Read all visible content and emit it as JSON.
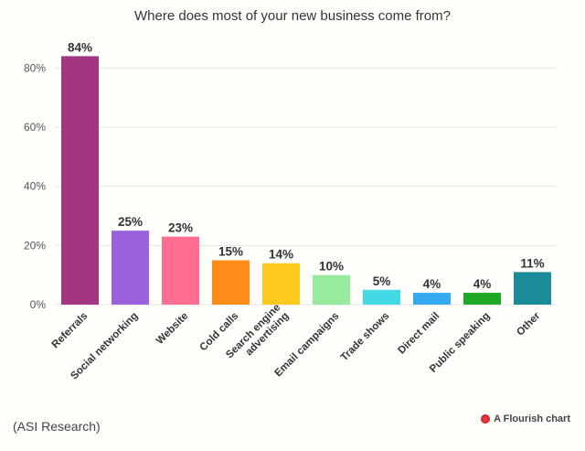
{
  "chart_data": {
    "type": "bar",
    "title": "Where does most of your new business come from?",
    "categories": [
      "Referrals",
      "Social networking",
      "Website",
      "Cold calls",
      "Search engine advertising",
      "Email campaigns",
      "Trade shows",
      "Direct mail",
      "Public speaking",
      "Other"
    ],
    "category_lines": [
      [
        "Referrals"
      ],
      [
        "Social networking"
      ],
      [
        "Website"
      ],
      [
        "Cold calls"
      ],
      [
        "Search engine",
        "advertising"
      ],
      [
        "Email campaigns"
      ],
      [
        "Trade shows"
      ],
      [
        "Direct mail"
      ],
      [
        "Public speaking"
      ],
      [
        "Other"
      ]
    ],
    "values": [
      84,
      25,
      23,
      15,
      14,
      10,
      5,
      4,
      4,
      11
    ],
    "value_labels": [
      "84%",
      "25%",
      "23%",
      "15%",
      "14%",
      "10%",
      "5%",
      "4%",
      "4%",
      "11%"
    ],
    "colors": [
      "#a23683",
      "#9b62e0",
      "#ff6e91",
      "#ff8c1a",
      "#ffc81f",
      "#98eb9e",
      "#45d9e6",
      "#36aaf0",
      "#1fa826",
      "#1b8a99"
    ],
    "yticks": [
      0,
      20,
      40,
      60,
      80
    ],
    "ytick_labels": [
      "0%",
      "20%",
      "40%",
      "60%",
      "80%"
    ],
    "ylim": [
      0,
      90
    ],
    "grid": true,
    "xlabel": "",
    "ylabel": ""
  },
  "footer": {
    "source": "(ASI Research)",
    "credit": "A Flourish chart",
    "credit_icon": "flourish-logo-icon"
  }
}
